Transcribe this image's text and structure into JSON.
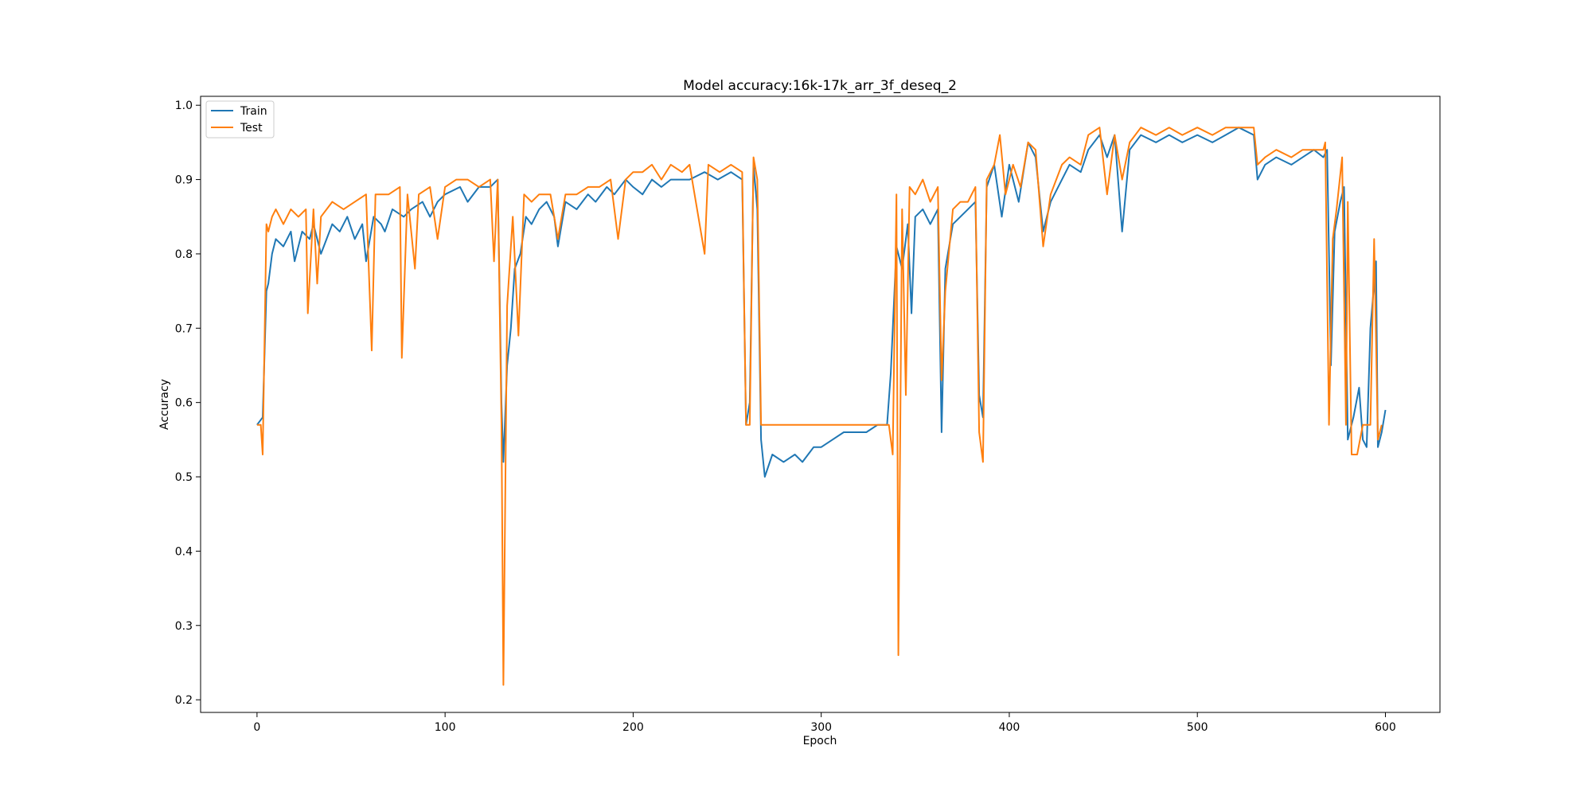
{
  "chart_data": {
    "type": "line",
    "title": "Model accuracy:16k-17k_arr_3f_deseq_2",
    "xlabel": "Epoch",
    "ylabel": "Accuracy",
    "xlim": [
      -30,
      629
    ],
    "ylim": [
      0.183,
      1.012
    ],
    "xticks": [
      0,
      100,
      200,
      300,
      400,
      500,
      600
    ],
    "yticks": [
      0.2,
      0.3,
      0.4,
      0.5,
      0.6,
      0.7,
      0.8,
      0.9,
      1.0
    ],
    "grid": false,
    "legend_position": "upper-left",
    "series": [
      {
        "name": "Train",
        "color": "#1f77b4",
        "points": [
          [
            0,
            0.57
          ],
          [
            3,
            0.58
          ],
          [
            5,
            0.75
          ],
          [
            6,
            0.76
          ],
          [
            8,
            0.8
          ],
          [
            10,
            0.82
          ],
          [
            14,
            0.81
          ],
          [
            18,
            0.83
          ],
          [
            20,
            0.79
          ],
          [
            24,
            0.83
          ],
          [
            28,
            0.82
          ],
          [
            30,
            0.84
          ],
          [
            34,
            0.8
          ],
          [
            40,
            0.84
          ],
          [
            44,
            0.83
          ],
          [
            48,
            0.85
          ],
          [
            52,
            0.82
          ],
          [
            56,
            0.84
          ],
          [
            58,
            0.79
          ],
          [
            62,
            0.85
          ],
          [
            66,
            0.84
          ],
          [
            68,
            0.83
          ],
          [
            72,
            0.86
          ],
          [
            78,
            0.85
          ],
          [
            82,
            0.86
          ],
          [
            88,
            0.87
          ],
          [
            92,
            0.85
          ],
          [
            96,
            0.87
          ],
          [
            100,
            0.88
          ],
          [
            108,
            0.89
          ],
          [
            112,
            0.87
          ],
          [
            118,
            0.89
          ],
          [
            124,
            0.89
          ],
          [
            128,
            0.9
          ],
          [
            130,
            0.6
          ],
          [
            131,
            0.52
          ],
          [
            133,
            0.65
          ],
          [
            135,
            0.7
          ],
          [
            137,
            0.78
          ],
          [
            140,
            0.8
          ],
          [
            143,
            0.85
          ],
          [
            146,
            0.84
          ],
          [
            150,
            0.86
          ],
          [
            154,
            0.87
          ],
          [
            158,
            0.85
          ],
          [
            160,
            0.81
          ],
          [
            164,
            0.87
          ],
          [
            170,
            0.86
          ],
          [
            176,
            0.88
          ],
          [
            180,
            0.87
          ],
          [
            186,
            0.89
          ],
          [
            190,
            0.88
          ],
          [
            196,
            0.9
          ],
          [
            200,
            0.89
          ],
          [
            205,
            0.88
          ],
          [
            210,
            0.9
          ],
          [
            215,
            0.89
          ],
          [
            220,
            0.9
          ],
          [
            230,
            0.9
          ],
          [
            238,
            0.91
          ],
          [
            245,
            0.9
          ],
          [
            252,
            0.91
          ],
          [
            258,
            0.9
          ],
          [
            260,
            0.57
          ],
          [
            262,
            0.6
          ],
          [
            264,
            0.92
          ],
          [
            266,
            0.86
          ],
          [
            268,
            0.55
          ],
          [
            270,
            0.5
          ],
          [
            274,
            0.53
          ],
          [
            280,
            0.52
          ],
          [
            286,
            0.53
          ],
          [
            290,
            0.52
          ],
          [
            296,
            0.54
          ],
          [
            300,
            0.54
          ],
          [
            306,
            0.55
          ],
          [
            312,
            0.56
          ],
          [
            318,
            0.56
          ],
          [
            324,
            0.56
          ],
          [
            330,
            0.57
          ],
          [
            335,
            0.57
          ],
          [
            337,
            0.64
          ],
          [
            340,
            0.81
          ],
          [
            343,
            0.78
          ],
          [
            346,
            0.84
          ],
          [
            348,
            0.72
          ],
          [
            350,
            0.85
          ],
          [
            354,
            0.86
          ],
          [
            358,
            0.84
          ],
          [
            362,
            0.86
          ],
          [
            364,
            0.56
          ],
          [
            366,
            0.78
          ],
          [
            370,
            0.84
          ],
          [
            374,
            0.85
          ],
          [
            378,
            0.86
          ],
          [
            382,
            0.87
          ],
          [
            384,
            0.61
          ],
          [
            386,
            0.58
          ],
          [
            388,
            0.89
          ],
          [
            392,
            0.92
          ],
          [
            396,
            0.85
          ],
          [
            400,
            0.92
          ],
          [
            405,
            0.87
          ],
          [
            410,
            0.95
          ],
          [
            414,
            0.93
          ],
          [
            418,
            0.83
          ],
          [
            422,
            0.87
          ],
          [
            428,
            0.9
          ],
          [
            432,
            0.92
          ],
          [
            438,
            0.91
          ],
          [
            442,
            0.94
          ],
          [
            448,
            0.96
          ],
          [
            452,
            0.93
          ],
          [
            456,
            0.96
          ],
          [
            460,
            0.83
          ],
          [
            464,
            0.94
          ],
          [
            470,
            0.96
          ],
          [
            478,
            0.95
          ],
          [
            485,
            0.96
          ],
          [
            492,
            0.95
          ],
          [
            500,
            0.96
          ],
          [
            508,
            0.95
          ],
          [
            515,
            0.96
          ],
          [
            522,
            0.97
          ],
          [
            530,
            0.96
          ],
          [
            532,
            0.9
          ],
          [
            536,
            0.92
          ],
          [
            542,
            0.93
          ],
          [
            550,
            0.92
          ],
          [
            556,
            0.93
          ],
          [
            562,
            0.94
          ],
          [
            567,
            0.93
          ],
          [
            569,
            0.94
          ],
          [
            570,
            0.8
          ],
          [
            571,
            0.65
          ],
          [
            573,
            0.83
          ],
          [
            576,
            0.87
          ],
          [
            578,
            0.89
          ],
          [
            580,
            0.55
          ],
          [
            583,
            0.58
          ],
          [
            586,
            0.62
          ],
          [
            588,
            0.55
          ],
          [
            590,
            0.54
          ],
          [
            592,
            0.7
          ],
          [
            595,
            0.79
          ],
          [
            596,
            0.54
          ],
          [
            598,
            0.56
          ],
          [
            600,
            0.59
          ]
        ]
      },
      {
        "name": "Test",
        "color": "#ff7f0e",
        "points": [
          [
            0,
            0.57
          ],
          [
            2,
            0.57
          ],
          [
            3,
            0.53
          ],
          [
            5,
            0.84
          ],
          [
            6,
            0.83
          ],
          [
            8,
            0.85
          ],
          [
            10,
            0.86
          ],
          [
            14,
            0.84
          ],
          [
            18,
            0.86
          ],
          [
            22,
            0.85
          ],
          [
            26,
            0.86
          ],
          [
            27,
            0.72
          ],
          [
            30,
            0.86
          ],
          [
            32,
            0.76
          ],
          [
            34,
            0.85
          ],
          [
            40,
            0.87
          ],
          [
            46,
            0.86
          ],
          [
            52,
            0.87
          ],
          [
            58,
            0.88
          ],
          [
            61,
            0.67
          ],
          [
            63,
            0.88
          ],
          [
            70,
            0.88
          ],
          [
            76,
            0.89
          ],
          [
            77,
            0.66
          ],
          [
            80,
            0.88
          ],
          [
            84,
            0.78
          ],
          [
            86,
            0.88
          ],
          [
            92,
            0.89
          ],
          [
            96,
            0.82
          ],
          [
            100,
            0.89
          ],
          [
            106,
            0.9
          ],
          [
            112,
            0.9
          ],
          [
            118,
            0.89
          ],
          [
            124,
            0.9
          ],
          [
            126,
            0.79
          ],
          [
            128,
            0.9
          ],
          [
            130,
            0.57
          ],
          [
            131,
            0.22
          ],
          [
            133,
            0.73
          ],
          [
            136,
            0.85
          ],
          [
            139,
            0.69
          ],
          [
            142,
            0.88
          ],
          [
            146,
            0.87
          ],
          [
            150,
            0.88
          ],
          [
            156,
            0.88
          ],
          [
            160,
            0.82
          ],
          [
            164,
            0.88
          ],
          [
            170,
            0.88
          ],
          [
            176,
            0.89
          ],
          [
            182,
            0.89
          ],
          [
            188,
            0.9
          ],
          [
            192,
            0.82
          ],
          [
            196,
            0.9
          ],
          [
            200,
            0.91
          ],
          [
            205,
            0.91
          ],
          [
            210,
            0.92
          ],
          [
            215,
            0.9
          ],
          [
            220,
            0.92
          ],
          [
            226,
            0.91
          ],
          [
            230,
            0.92
          ],
          [
            238,
            0.8
          ],
          [
            240,
            0.92
          ],
          [
            246,
            0.91
          ],
          [
            252,
            0.92
          ],
          [
            258,
            0.91
          ],
          [
            260,
            0.57
          ],
          [
            262,
            0.57
          ],
          [
            264,
            0.93
          ],
          [
            266,
            0.9
          ],
          [
            268,
            0.57
          ],
          [
            300,
            0.57
          ],
          [
            336,
            0.57
          ],
          [
            338,
            0.53
          ],
          [
            340,
            0.88
          ],
          [
            341,
            0.26
          ],
          [
            343,
            0.86
          ],
          [
            345,
            0.61
          ],
          [
            347,
            0.89
          ],
          [
            350,
            0.88
          ],
          [
            354,
            0.9
          ],
          [
            358,
            0.87
          ],
          [
            362,
            0.89
          ],
          [
            364,
            0.63
          ],
          [
            366,
            0.75
          ],
          [
            370,
            0.86
          ],
          [
            374,
            0.87
          ],
          [
            378,
            0.87
          ],
          [
            382,
            0.89
          ],
          [
            384,
            0.56
          ],
          [
            386,
            0.52
          ],
          [
            388,
            0.9
          ],
          [
            392,
            0.92
          ],
          [
            395,
            0.96
          ],
          [
            398,
            0.88
          ],
          [
            402,
            0.92
          ],
          [
            406,
            0.89
          ],
          [
            410,
            0.95
          ],
          [
            414,
            0.94
          ],
          [
            418,
            0.81
          ],
          [
            422,
            0.88
          ],
          [
            428,
            0.92
          ],
          [
            432,
            0.93
          ],
          [
            438,
            0.92
          ],
          [
            442,
            0.96
          ],
          [
            448,
            0.97
          ],
          [
            452,
            0.88
          ],
          [
            456,
            0.96
          ],
          [
            460,
            0.9
          ],
          [
            464,
            0.95
          ],
          [
            470,
            0.97
          ],
          [
            478,
            0.96
          ],
          [
            485,
            0.97
          ],
          [
            492,
            0.96
          ],
          [
            500,
            0.97
          ],
          [
            508,
            0.96
          ],
          [
            515,
            0.97
          ],
          [
            522,
            0.97
          ],
          [
            530,
            0.97
          ],
          [
            532,
            0.92
          ],
          [
            536,
            0.93
          ],
          [
            542,
            0.94
          ],
          [
            550,
            0.93
          ],
          [
            556,
            0.94
          ],
          [
            562,
            0.94
          ],
          [
            567,
            0.94
          ],
          [
            568,
            0.95
          ],
          [
            570,
            0.57
          ],
          [
            572,
            0.82
          ],
          [
            574,
            0.86
          ],
          [
            577,
            0.93
          ],
          [
            579,
            0.57
          ],
          [
            580,
            0.87
          ],
          [
            582,
            0.53
          ],
          [
            585,
            0.53
          ],
          [
            588,
            0.57
          ],
          [
            590,
            0.57
          ],
          [
            592,
            0.57
          ],
          [
            594,
            0.82
          ],
          [
            596,
            0.55
          ],
          [
            598,
            0.57
          ]
        ]
      }
    ]
  }
}
